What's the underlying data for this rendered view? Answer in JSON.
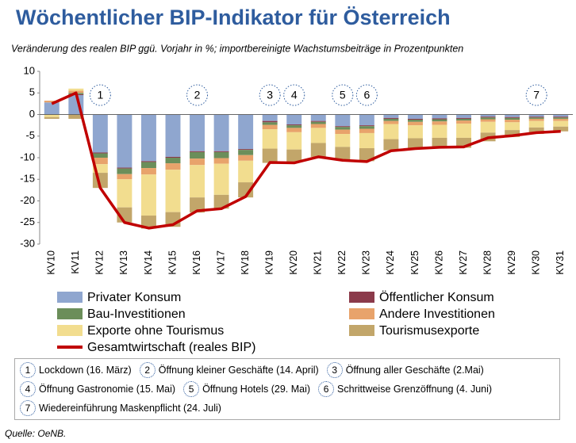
{
  "chart_data": {
    "type": "bar",
    "title": "Wöchentlicher BIP-Indikator für Österreich",
    "subtitle": "Veränderung des realen BIP ggü. Vorjahr in %;  importbereinigte Wachstumsbeiträge in Prozentpunkten",
    "categories": [
      "KV10",
      "KV11",
      "KV12",
      "KV13",
      "KV14",
      "KV15",
      "KV16",
      "KV17",
      "KV18",
      "KV19",
      "KV20",
      "KV21",
      "KV22",
      "KV23",
      "KV24",
      "KV25",
      "KV26",
      "KV27",
      "KV28",
      "KV29",
      "KV30",
      "KV31"
    ],
    "series": [
      {
        "name": "Privater Konsum",
        "color": "#8fa6cf",
        "values": [
          2.8,
          4.5,
          -8.8,
          -12.3,
          -10.8,
          -9.8,
          -8.5,
          -8.5,
          -8,
          -1.5,
          -2.3,
          -1.5,
          -2.7,
          -2.5,
          -0.8,
          -1,
          -0.9,
          -0.8,
          -0.5,
          -0.6,
          -0.5,
          -0.5
        ]
      },
      {
        "name": "Öffentlicher Konsum",
        "color": "#8b3a4a",
        "values": [
          0,
          0.2,
          -0.2,
          -0.2,
          -0.2,
          -0.2,
          -0.2,
          -0.2,
          -0.2,
          -0.3,
          -0.2,
          -0.2,
          -0.2,
          -0.2,
          -0.2,
          -0.2,
          -0.2,
          -0.2,
          -0.2,
          -0.2,
          -0.2,
          -0.2
        ]
      },
      {
        "name": "Bau-Investitionen",
        "color": "#6b8e5a",
        "values": [
          0,
          0.3,
          -1,
          -1.3,
          -1.4,
          -1.3,
          -1.5,
          -1.4,
          -1.2,
          -0.6,
          -0.6,
          -0.5,
          -0.6,
          -0.6,
          -0.5,
          -0.5,
          -0.5,
          -0.4,
          -0.4,
          -0.4,
          -0.3,
          -0.3
        ]
      },
      {
        "name": "Andere Investitionen",
        "color": "#e8a36b",
        "values": [
          0.4,
          0.5,
          -1.5,
          -1.2,
          -1.5,
          -1.5,
          -1.5,
          -1.3,
          -1.3,
          -1,
          -1,
          -0.9,
          -1,
          -1,
          -0.7,
          -0.8,
          -0.8,
          -0.7,
          -0.6,
          -0.6,
          -0.5,
          -0.5
        ]
      },
      {
        "name": "Exporte ohne Tourismus",
        "color": "#f2dd8f",
        "values": [
          -0.6,
          0.5,
          -2,
          -6.5,
          -9.5,
          -9.8,
          -7.5,
          -7.2,
          -5,
          -4.5,
          -4,
          -3.5,
          -3,
          -3.5,
          -3.5,
          -3,
          -3,
          -3.3,
          -2.5,
          -1.8,
          -1.5,
          -1.3
        ]
      },
      {
        "name": "Tourismusexporte",
        "color": "#c2a66a",
        "values": [
          -0.4,
          -1,
          -3.5,
          -3.5,
          -3,
          -3.4,
          -3.5,
          -3.2,
          -3.5,
          -3.3,
          -3,
          -3.2,
          -3,
          -3,
          -2.6,
          -2.4,
          -2.3,
          -2.3,
          -2,
          -1.6,
          -1.5,
          -1.1
        ]
      },
      {
        "name": "Gesamtwirtschaft (reales BIP)",
        "type": "line",
        "color": "#c00000",
        "values": [
          2.5,
          5,
          -17,
          -25,
          -26.3,
          -25.5,
          -22.3,
          -21.8,
          -19,
          -11.1,
          -11.2,
          -9.8,
          -10.6,
          -10.9,
          -8.4,
          -7.9,
          -7.6,
          -7.5,
          -5.4,
          -4.9,
          -4.2,
          -3.9
        ]
      }
    ],
    "ylim": [
      -30,
      10
    ],
    "yticks": [
      10,
      5,
      0,
      -5,
      -10,
      -15,
      -20,
      -25,
      -30
    ],
    "grid": false,
    "annotations": [
      {
        "label": "1",
        "category": "KV12"
      },
      {
        "label": "2",
        "category": "KV16"
      },
      {
        "label": "3",
        "category": "KV19"
      },
      {
        "label": "4",
        "category": "KV20"
      },
      {
        "label": "5",
        "category": "KV22"
      },
      {
        "label": "6",
        "category": "KV23"
      },
      {
        "label": "7",
        "category": "KV30"
      }
    ],
    "notes": [
      {
        "number": "1",
        "text": "Lockdown (16. März)"
      },
      {
        "number": "2",
        "text": "Öffnung kleiner Geschäfte (14. April)"
      },
      {
        "number": "3",
        "text": "Öffnung aller Geschäfte (2.Mai)"
      },
      {
        "number": "4",
        "text": "Öffnung Gastronomie (15. Mai)"
      },
      {
        "number": "5",
        "text": "Öffnung Hotels (29. Mai)"
      },
      {
        "number": "6",
        "text": "Schrittweise Grenzöffnung (4. Juni)"
      },
      {
        "number": "7",
        "text": "Wiedereinführung Maskenpflicht (24. Juli)"
      }
    ],
    "source": "Quelle: OeNB."
  }
}
